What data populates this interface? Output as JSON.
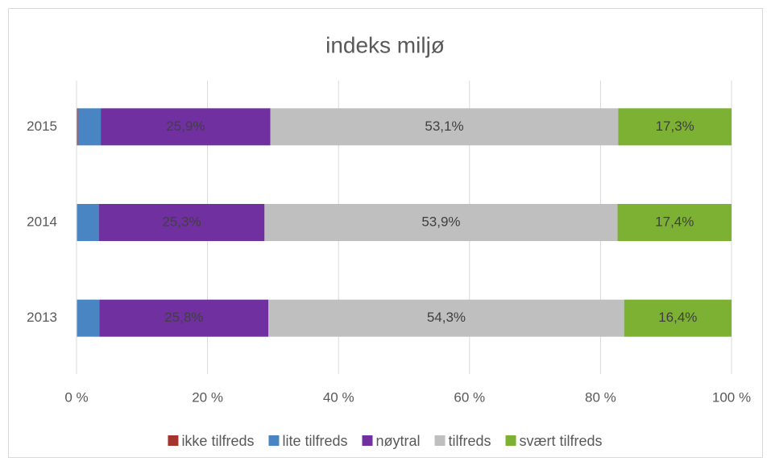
{
  "chart_data": {
    "type": "bar",
    "orientation": "horizontal",
    "stacked": true,
    "title": "indeks miljø",
    "categories": [
      "2015",
      "2014",
      "2013"
    ],
    "series": [
      {
        "name": "ikke tilfreds",
        "color": "#a5342f",
        "values": [
          0.2,
          0.1,
          0.1
        ]
      },
      {
        "name": "lite tilfreds",
        "color": "#4a85c3",
        "values": [
          3.5,
          3.3,
          3.4
        ]
      },
      {
        "name": "nøytral",
        "color": "#7030a0",
        "values": [
          25.9,
          25.3,
          25.8
        ],
        "value_labels": [
          "25,9%",
          "25,3%",
          "25,8%"
        ]
      },
      {
        "name": "tilfreds",
        "color": "#bfbfbf",
        "values": [
          53.1,
          53.9,
          54.3
        ],
        "value_labels": [
          "53,1%",
          "53,9%",
          "54,3%"
        ]
      },
      {
        "name": "svært tilfreds",
        "color": "#7cb133",
        "values": [
          17.3,
          17.4,
          16.4
        ],
        "value_labels": [
          "17,3%",
          "17,4%",
          "16,4%"
        ]
      }
    ],
    "xlim": [
      0,
      100
    ],
    "xticks": [
      {
        "value": 0,
        "label": "0 %"
      },
      {
        "value": 20,
        "label": "20 %"
      },
      {
        "value": 40,
        "label": "40 %"
      },
      {
        "value": 60,
        "label": "60 %"
      },
      {
        "value": 80,
        "label": "80 %"
      },
      {
        "value": 100,
        "label": "100 %"
      }
    ],
    "grid": true,
    "legend": "bottom"
  }
}
